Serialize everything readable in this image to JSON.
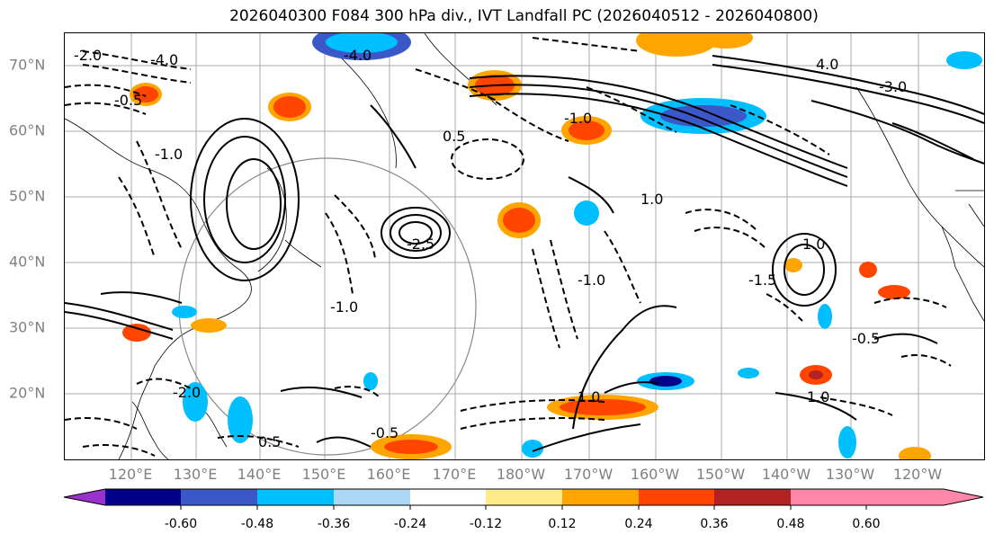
{
  "title": "2026040300 F084 300 hPa div., IVT Landfall PC (2026040512 - 2026040800)",
  "map": {
    "lat_labels": [
      "70°N",
      "60°N",
      "50°N",
      "40°N",
      "30°N",
      "20°N"
    ],
    "lon_labels": [
      "120°E",
      "130°E",
      "140°E",
      "150°E",
      "160°E",
      "170°E",
      "180°W",
      "170°W",
      "160°W",
      "150°W",
      "140°W",
      "130°W",
      "120°W"
    ],
    "contour_labels": [
      "-2.0",
      "-4.0",
      "-0.5",
      "-1.0",
      "0.5",
      "1.0",
      "-1.5",
      "-2.5",
      "0.5",
      "-0.5",
      "1.0",
      "-1.0",
      "1.0",
      "-0.5",
      "-4.0",
      "-3.0",
      "-1.0",
      "4.0",
      "-2.0",
      "-1.0",
      "1.0"
    ]
  },
  "colorbar": {
    "colors": [
      "#9932cc",
      "#00008b",
      "#3a58c8",
      "#00bfff",
      "#add8f5",
      "#ffffff",
      "#ffeb8a",
      "#ffa500",
      "#ff4500",
      "#b22222",
      "#ff88aa"
    ],
    "tick_labels": [
      "-0.60",
      "-0.48",
      "-0.36",
      "-0.24",
      "-0.12",
      "0.12",
      "0.24",
      "0.36",
      "0.48",
      "0.60"
    ]
  }
}
